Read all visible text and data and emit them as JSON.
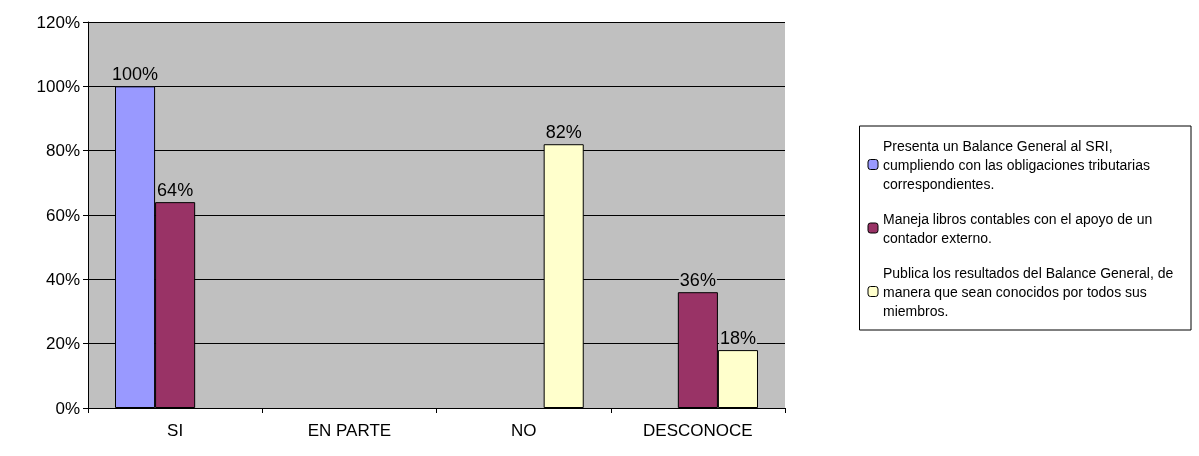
{
  "chart_data": {
    "type": "bar",
    "categories": [
      "SI",
      "EN PARTE",
      "NO",
      "DESCONOCE"
    ],
    "series": [
      {
        "name": "Presenta un Balance General al SRI, cumpliendo con las obligaciones tributarias correspondientes.",
        "color": "#9999ff",
        "values": [
          100,
          null,
          null,
          null
        ],
        "value_labels": [
          "100%",
          null,
          null,
          null
        ]
      },
      {
        "name": "Maneja libros contables con el apoyo de un contador externo.",
        "color": "#993366",
        "values": [
          64,
          null,
          null,
          36
        ],
        "value_labels": [
          "64%",
          null,
          null,
          "36%"
        ]
      },
      {
        "name": "Publica los resultados del Balance General, de manera que sean conocidos por todos sus miembros.",
        "color": "#ffffcc",
        "values": [
          null,
          null,
          82,
          18
        ],
        "value_labels": [
          null,
          null,
          "82%",
          "18%"
        ]
      }
    ],
    "ylim": [
      0,
      120
    ],
    "yticks": [
      {
        "value": 0,
        "label": "0%"
      },
      {
        "value": 20,
        "label": "20%"
      },
      {
        "value": 40,
        "label": "40%"
      },
      {
        "value": 60,
        "label": "60%"
      },
      {
        "value": 80,
        "label": "80%"
      },
      {
        "value": 100,
        "label": "100%"
      },
      {
        "value": 120,
        "label": "120%"
      }
    ],
    "grid": "y",
    "legend": "right"
  }
}
